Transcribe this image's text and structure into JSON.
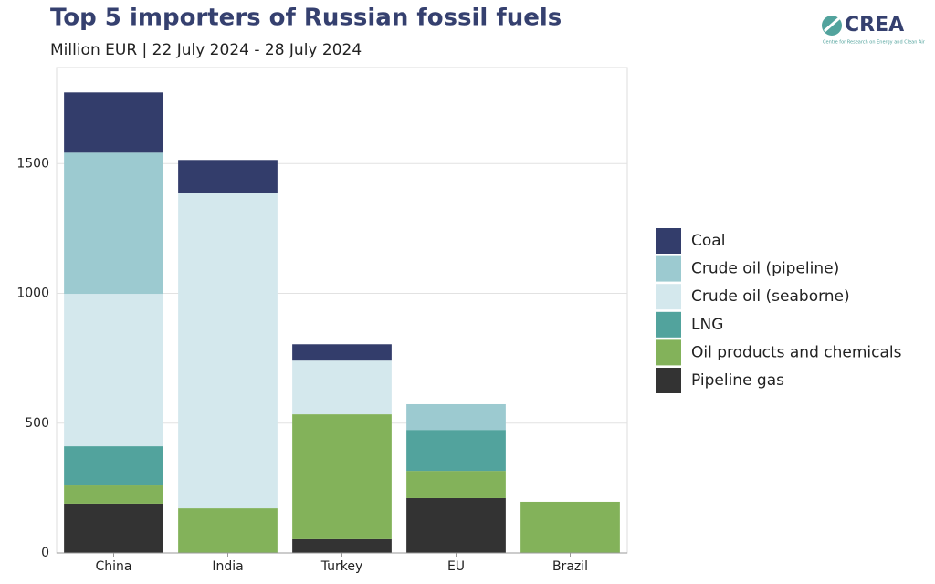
{
  "chart_data": {
    "type": "stacked_bar",
    "title": "Top 5 importers of Russian fossil fuels",
    "subtitle": "Million EUR | 22 July 2024 - 28 July 2024",
    "logo": {
      "name": "CREA",
      "tagline": "Centre for Research on Energy and Clean Air"
    },
    "categories": [
      "China",
      "India",
      "Turkey",
      "EU",
      "Brazil"
    ],
    "series": [
      {
        "name": "Coal",
        "color": "#333d6b",
        "values": [
          232,
          126,
          63,
          0,
          0
        ]
      },
      {
        "name": "Crude oil (pipeline)",
        "color": "#9ccad0",
        "values": [
          544,
          0,
          0,
          99,
          0
        ]
      },
      {
        "name": "Crude oil (seaborne)",
        "color": "#d4e8ed",
        "values": [
          587,
          1216,
          207,
          0,
          0
        ]
      },
      {
        "name": "LNG",
        "color": "#52a39d",
        "values": [
          151,
          0,
          0,
          158,
          0
        ]
      },
      {
        "name": "Oil products and chemicals",
        "color": "#83b25a",
        "values": [
          70,
          172,
          481,
          105,
          197
        ]
      },
      {
        "name": "Pipeline gas",
        "color": "#333333",
        "values": [
          190,
          0,
          53,
          211,
          0
        ]
      }
    ],
    "ylim": [
      0,
      1870
    ],
    "yticks": [
      0,
      500,
      1000,
      1500
    ],
    "grid": true,
    "legend": "right"
  }
}
